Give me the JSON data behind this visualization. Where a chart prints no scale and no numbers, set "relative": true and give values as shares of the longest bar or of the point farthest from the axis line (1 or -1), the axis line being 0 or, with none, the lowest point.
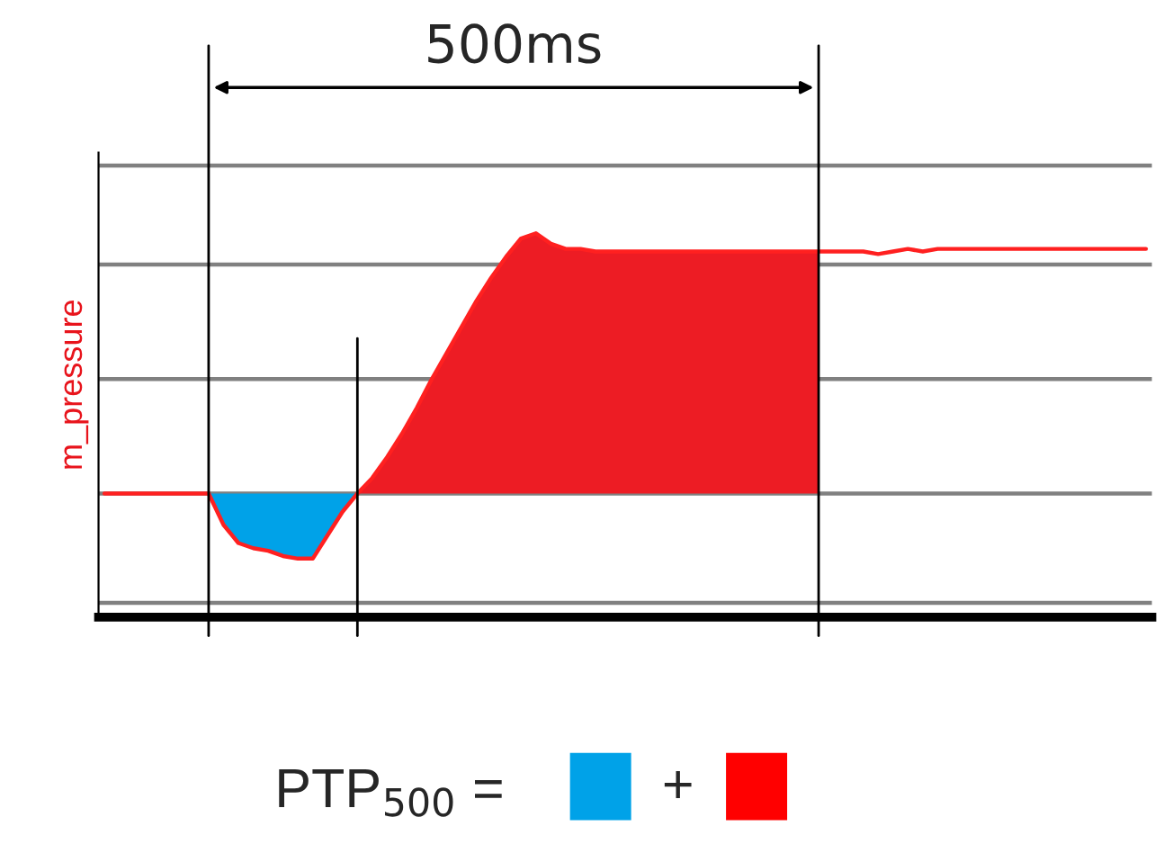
{
  "chart_data": {
    "type": "line",
    "relative": true,
    "ylabel": "m_pressure",
    "marker": "none",
    "line_style": "solid",
    "grid": true,
    "categories": [
      null,
      null,
      null,
      null,
      null,
      null,
      null,
      null,
      null,
      null,
      null,
      null,
      null,
      null,
      null,
      null,
      null,
      null,
      null,
      null,
      null,
      null,
      null,
      null,
      null,
      null,
      null,
      null,
      null,
      null,
      null,
      null,
      null,
      null,
      null,
      null,
      null,
      null,
      null,
      null,
      null,
      null,
      null,
      null,
      null,
      null,
      null,
      null,
      null,
      null,
      null,
      null,
      null,
      null,
      null,
      null,
      null,
      null,
      null,
      null,
      null,
      null,
      null,
      null,
      null,
      null,
      null,
      null,
      null,
      null,
      null
    ],
    "annotations": [
      "500ms",
      "PTP$_{500}$ =",
      "+"
    ],
    "series": [
      {
        "color": "#ff2020",
        "values": [
          0,
          0,
          0,
          0,
          0,
          0,
          0,
          0,
          -0.12,
          -0.19,
          -0.21,
          -0.22,
          -0.24,
          -0.25,
          -0.25,
          -0.16,
          -0.07,
          0,
          0.06,
          0.14,
          0.23,
          0.33,
          0.44,
          0.54,
          0.64,
          0.74,
          0.83,
          0.91,
          0.98,
          1,
          0.96,
          0.94,
          0.94,
          0.93,
          0.93,
          0.93,
          0.93,
          0.93,
          0.93,
          0.93,
          0.93,
          0.93,
          0.93,
          0.93,
          0.93,
          0.93,
          0.93,
          0.93,
          0.93,
          0.93,
          0.93,
          0.93,
          0.92,
          0.93,
          0.94,
          0.93,
          0.94,
          0.94,
          0.94,
          0.94,
          0.94,
          0.94,
          0.94,
          0.94,
          0.94,
          0.94,
          0.94,
          0.94,
          0.94,
          0.94,
          0.94
        ]
      },
      {
        "type": "area",
        "color": "#00a2e8",
        "values": [
          null,
          null,
          null,
          null,
          null,
          null,
          null,
          0,
          -0.12,
          -0.19,
          -0.21,
          -0.22,
          -0.24,
          -0.25,
          -0.25,
          -0.16,
          -0.07,
          0,
          null,
          null,
          null,
          null,
          null,
          null,
          null,
          null,
          null,
          null,
          null,
          null,
          null,
          null,
          null,
          null,
          null,
          null,
          null,
          null,
          null,
          null,
          null,
          null,
          null,
          null,
          null,
          null,
          null,
          null,
          null,
          null,
          null,
          null,
          null,
          null,
          null,
          null,
          null,
          null,
          null,
          null,
          null,
          null,
          null,
          null,
          null,
          null,
          null,
          null,
          null,
          null,
          null
        ]
      },
      {
        "type": "area",
        "color": "#ed1c24",
        "values": [
          null,
          null,
          null,
          null,
          null,
          null,
          null,
          null,
          null,
          null,
          null,
          null,
          null,
          null,
          null,
          null,
          null,
          0,
          0.06,
          0.14,
          0.23,
          0.33,
          0.44,
          0.54,
          0.64,
          0.74,
          0.83,
          0.91,
          0.98,
          1,
          0.96,
          0.94,
          0.94,
          0.93,
          0.93,
          0.93,
          0.93,
          0.93,
          0.93,
          0.93,
          0.93,
          0.93,
          0.93,
          0.93,
          0.93,
          0.93,
          0.93,
          0.93,
          0.93,
          null,
          null,
          null,
          null,
          null,
          null,
          null,
          null,
          null,
          null,
          null,
          null,
          null,
          null,
          null,
          null,
          null,
          null,
          null,
          null,
          null,
          null
        ]
      }
    ],
    "ref_lines": [
      {
        "axis": "y",
        "value": 1.26,
        "color": "#808080"
      },
      {
        "axis": "y",
        "value": 0.88,
        "color": "#808080"
      },
      {
        "axis": "y",
        "value": 0.44,
        "color": "#808080"
      },
      {
        "axis": "y",
        "value": 0,
        "color": "#808080"
      },
      {
        "axis": "y",
        "value": -0.42,
        "color": "#808080"
      }
    ]
  }
}
